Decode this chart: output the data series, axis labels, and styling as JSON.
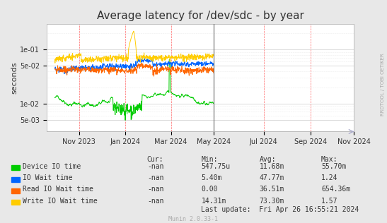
{
  "title": "Average latency for /dev/sdc - by year",
  "ylabel": "seconds",
  "background_color": "#e8e8e8",
  "plot_bg_color": "#ffffff",
  "grid_color_major": "#aaaaaa",
  "grid_color_minor": "#dddddd",
  "vline_color": "#666666",
  "right_label": "RRDTOOL / TOBI OETIKER",
  "munin_version": "Munin 2.0.33-1",
  "legend_items": [
    {
      "label": "Device IO time",
      "color": "#00cc00"
    },
    {
      "label": "IO Wait time",
      "color": "#0066ff"
    },
    {
      "label": "Read IO Wait time",
      "color": "#ff6600"
    },
    {
      "label": "Write IO Wait time",
      "color": "#ffcc00"
    }
  ],
  "stats": [
    {
      "name": "Device IO time",
      "cur": "-nan",
      "min": "547.75u",
      "avg": "11.68m",
      "max": "55.70m"
    },
    {
      "name": "IO Wait time",
      "cur": "-nan",
      "min": "5.40m",
      "avg": "47.77m",
      "max": "1.24"
    },
    {
      "name": "Read IO Wait time",
      "cur": "-nan",
      "min": "0.00",
      "avg": "36.51m",
      "max": "654.36m"
    },
    {
      "name": "Write IO Wait time",
      "cur": "-nan",
      "min": "14.31m",
      "avg": "73.30m",
      "max": "1.57"
    }
  ],
  "last_update": "Last update:  Fri Apr 26 16:55:21 2024",
  "xlim_start": 1695081600,
  "xlim_end": 1730073600,
  "vline_x": 1714089600,
  "ylim": [
    0.003,
    0.3
  ],
  "yticks": [
    0.005,
    0.01,
    0.05,
    0.1
  ],
  "yticklabels": [
    "5e-03",
    "1e-02",
    "5e-02",
    "1e-01"
  ],
  "xtick_positions": [
    1698796800,
    1704067200,
    1709251200,
    1714089600,
    1719792000,
    1725148800,
    1730073600
  ],
  "xtick_labels": [
    "Nov 2023",
    "Jan 2024",
    "Mar 2024",
    "May 2024",
    "Jul 2024",
    "Sep 2024",
    "Nov 2024"
  ]
}
